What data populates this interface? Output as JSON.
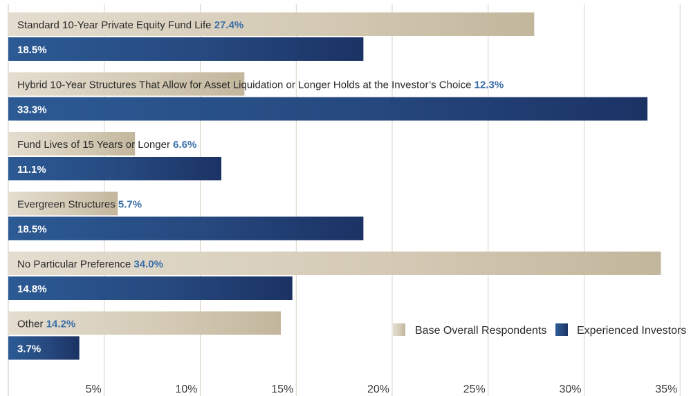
{
  "chart_data": {
    "type": "bar",
    "orientation": "horizontal",
    "categories": [
      "Standard 10-Year Private Equity Fund Life",
      "Hybrid 10-Year Structures That Allow for Asset Liquidation or Longer Holds at the Investor’s Choice",
      "Fund Lives of 15 Years or Longer",
      "Evergreen Structures",
      "No Particular Preference",
      "Other"
    ],
    "series": [
      {
        "name": "Base Overall Respondents",
        "values": [
          27.4,
          12.3,
          6.6,
          5.7,
          34.0,
          14.2
        ],
        "labels": [
          "27.4%",
          "12.3%",
          "6.6%",
          "5.7%",
          "34.0%",
          "14.2%"
        ],
        "color": "#c7bca5"
      },
      {
        "name": "Experienced Investors",
        "values": [
          18.5,
          33.3,
          11.1,
          18.5,
          14.8,
          3.7
        ],
        "labels": [
          "18.5%",
          "33.3%",
          "11.1%",
          "18.5%",
          "14.8%",
          "3.7%"
        ],
        "color": "#1e3a6e"
      }
    ],
    "xlim": [
      0,
      35
    ],
    "ticks": [
      5,
      10,
      15,
      20,
      25,
      30,
      35
    ],
    "tick_labels": [
      "5%",
      "10%",
      "15%",
      "20%",
      "25%",
      "30%",
      "35%"
    ],
    "grid": true,
    "legend_position": "bottom-right",
    "label_color": "#3a6fa8"
  }
}
